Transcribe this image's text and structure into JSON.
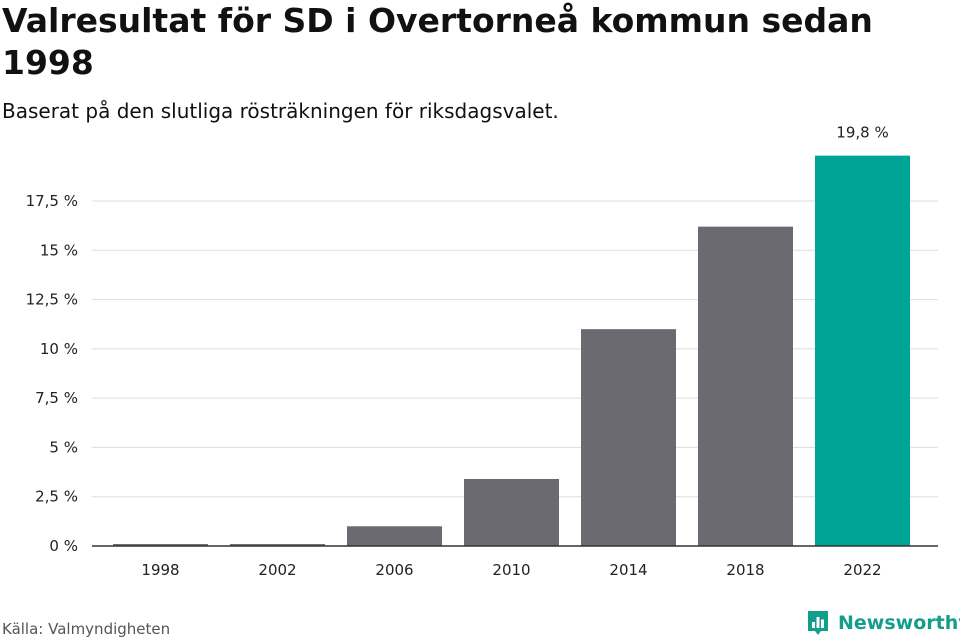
{
  "title": "Valresultat för SD i Overtorneå kommun sedan 1998",
  "subtitle": "Baserat på den slutliga rösträkningen för riksdagsvalet.",
  "source": "Källa: Valmyndigheten",
  "brand": {
    "name": "Newsworthy",
    "logo_icon": "newsworthy-bar-chart-logo-icon",
    "color": "#139e8c"
  },
  "colors": {
    "bar_default": "#6b6a70",
    "bar_highlight": "#00a497",
    "grid": "#dddddd",
    "axis": "#333333"
  },
  "chart_data": {
    "type": "bar",
    "categories": [
      "1998",
      "2002",
      "2006",
      "2010",
      "2014",
      "2018",
      "2022"
    ],
    "values": [
      0.1,
      0.1,
      1.0,
      3.4,
      11.0,
      16.2,
      19.8
    ],
    "highlight_index": 6,
    "data_labels": [
      {
        "index": 6,
        "text": "19,8 %"
      }
    ],
    "yticks": [
      {
        "value": 0,
        "label": "0 %"
      },
      {
        "value": 2.5,
        "label": "2,5 %"
      },
      {
        "value": 5,
        "label": "5 %"
      },
      {
        "value": 7.5,
        "label": "7,5 %"
      },
      {
        "value": 10,
        "label": "10 %"
      },
      {
        "value": 12.5,
        "label": "12,5 %"
      },
      {
        "value": 15,
        "label": "15 %"
      },
      {
        "value": 17.5,
        "label": "17,5 %"
      }
    ],
    "ylim": [
      0,
      20
    ],
    "grid": true,
    "legend": false
  }
}
